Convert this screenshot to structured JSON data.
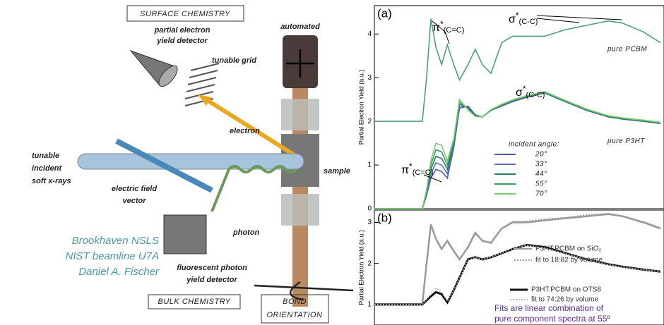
{
  "chart_data": [
    {
      "type": "line",
      "panel": "(a)",
      "y_label": "Partial Electron Yield (a.u.)",
      "x": [
        280.0,
        286.7,
        287.3,
        287.9,
        288.6,
        289.4,
        290.2,
        291.1,
        291.9,
        293.1,
        294.1,
        295.1,
        296.3,
        297.8,
        299.3,
        301.3,
        303.8,
        306.7,
        309.7,
        312.7,
        314.7,
        317.6,
        320.0
      ],
      "xlim": [
        280,
        320
      ],
      "ylim": [
        0,
        4.65
      ],
      "yticks": [
        0,
        1,
        2,
        3,
        4
      ],
      "legend_title": "incident angle:",
      "series": [
        {
          "name": "pure PCBM",
          "color": "#4aa07a",
          "values": [
            2.0,
            2.0,
            3.0,
            4.35,
            3.7,
            3.3,
            3.75,
            3.3,
            2.95,
            3.3,
            3.65,
            3.3,
            3.1,
            3.8,
            3.95,
            3.95,
            3.95,
            4.1,
            4.2,
            4.3,
            4.25,
            4.05,
            3.8
          ]
        },
        {
          "name": "20°",
          "color": "#4c5aa8",
          "values": [
            0,
            0,
            0.3,
            0.7,
            0.9,
            0.85,
            0.7,
            1.4,
            2.3,
            2.35,
            2.15,
            2.1,
            2.25,
            2.35,
            2.45,
            2.55,
            2.65,
            2.45,
            2.25,
            2.1,
            2.05,
            2.0,
            1.95
          ]
        },
        {
          "name": "33°",
          "color": "#5d6fb8",
          "values": [
            0,
            0,
            0.33,
            0.8,
            1.05,
            1.0,
            0.8,
            1.45,
            2.35,
            2.32,
            2.14,
            2.1,
            2.25,
            2.36,
            2.46,
            2.56,
            2.65,
            2.45,
            2.25,
            2.1,
            2.05,
            2.0,
            1.95
          ]
        },
        {
          "name": "44°",
          "color": "#2a7a6a",
          "values": [
            0,
            0,
            0.36,
            0.9,
            1.2,
            1.15,
            0.9,
            1.5,
            2.4,
            2.3,
            2.13,
            2.1,
            2.26,
            2.37,
            2.47,
            2.57,
            2.66,
            2.46,
            2.26,
            2.11,
            2.06,
            2.01,
            1.96
          ]
        },
        {
          "name": "55°",
          "color": "#3a9a5a",
          "values": [
            0,
            0,
            0.4,
            1.0,
            1.35,
            1.3,
            1.0,
            1.55,
            2.45,
            2.28,
            2.12,
            2.1,
            2.26,
            2.38,
            2.48,
            2.58,
            2.67,
            2.47,
            2.27,
            2.12,
            2.07,
            2.02,
            1.97
          ]
        },
        {
          "name": "70°",
          "color": "#7acc70",
          "values": [
            0,
            0,
            0.43,
            1.1,
            1.5,
            1.45,
            1.1,
            1.6,
            2.5,
            2.26,
            2.11,
            2.1,
            2.27,
            2.39,
            2.49,
            2.59,
            2.68,
            2.48,
            2.28,
            2.13,
            2.08,
            2.03,
            1.98
          ]
        }
      ],
      "annotations": [
        {
          "text": "π",
          "sup": "*",
          "sub": "(C=C)"
        },
        {
          "text": "σ",
          "sup": "*",
          "sub": "(C-C)"
        },
        {
          "text": "σ",
          "sup": "*",
          "sub": "(C-C)"
        },
        {
          "text": "π",
          "sup": "*",
          "sub": "(C=C)"
        },
        {
          "text": "pure P3HT"
        }
      ]
    },
    {
      "type": "line",
      "panel": "(b)",
      "y_label": "Partial Electron Yield (a.u.)",
      "x": [
        280.0,
        286.7,
        287.3,
        287.9,
        288.6,
        289.4,
        290.2,
        291.1,
        291.9,
        293.1,
        294.1,
        295.1,
        296.3,
        297.8,
        299.3,
        301.3,
        303.8,
        306.7,
        309.7,
        312.7,
        314.7,
        317.6,
        320.0
      ],
      "xlim": [
        280,
        320
      ],
      "ylim": [
        0.5,
        3.3
      ],
      "yticks": [
        1,
        2,
        3
      ],
      "series": [
        {
          "name": "P3HT:PCBM on SiO₂",
          "color": "#999999",
          "style": "solid",
          "values": [
            1.0,
            1.0,
            2.0,
            2.95,
            2.6,
            2.35,
            2.55,
            2.3,
            2.1,
            2.4,
            2.75,
            2.55,
            2.5,
            2.85,
            3.0,
            3.0,
            3.05,
            3.1,
            3.15,
            3.2,
            3.15,
            3.0,
            2.85
          ]
        },
        {
          "name": "fit to 18:82 by volume",
          "color": "#9a9a9a",
          "style": "dotted",
          "values": [
            1.0,
            1.0,
            1.95,
            2.9,
            2.62,
            2.38,
            2.52,
            2.32,
            2.12,
            2.38,
            2.72,
            2.56,
            2.52,
            2.86,
            3.02,
            3.03,
            3.08,
            3.12,
            3.18,
            3.22,
            3.16,
            3.02,
            2.88
          ]
        },
        {
          "name": "P3HT:PCBM on OTS8",
          "color": "#111111",
          "style": "solid",
          "values": [
            1.0,
            1.0,
            1.1,
            1.2,
            1.3,
            1.25,
            1.05,
            1.35,
            1.65,
            2.1,
            2.15,
            2.1,
            2.15,
            2.25,
            2.35,
            2.45,
            2.4,
            2.25,
            2.1,
            1.98,
            1.92,
            1.85,
            1.8
          ]
        },
        {
          "name": "fit to 74:26 by volume",
          "color": "#bbbbbb",
          "style": "dotted",
          "values": [
            1.0,
            1.0,
            1.12,
            1.25,
            1.4,
            1.3,
            1.08,
            1.35,
            1.63,
            2.08,
            2.14,
            2.1,
            2.16,
            2.26,
            2.36,
            2.44,
            2.38,
            2.24,
            2.1,
            1.97,
            1.91,
            1.85,
            1.8
          ]
        }
      ],
      "note": [
        "Fits are linear combination of",
        "pure component spectra at 55º"
      ]
    }
  ],
  "diagram": {
    "surface": "SURFACE CHEMISTRY",
    "pey": [
      "partial electron",
      "yield detector"
    ],
    "grid": "tunable grid",
    "automated": "automated",
    "electron": "electron",
    "xray": [
      "tunable",
      "incident",
      "soft x-rays"
    ],
    "efield": [
      "electric field",
      "vector"
    ],
    "sample": "sample",
    "photon": "photon",
    "fy": [
      "fluorescent photon",
      "yield detector"
    ],
    "bulk": "BULK CHEMISTRY",
    "bond": [
      "BOND",
      "ORIENTATION"
    ],
    "credits": [
      "Brookhaven NSLS",
      "NIST beamline U7A",
      "Daniel A. Fischer"
    ]
  }
}
